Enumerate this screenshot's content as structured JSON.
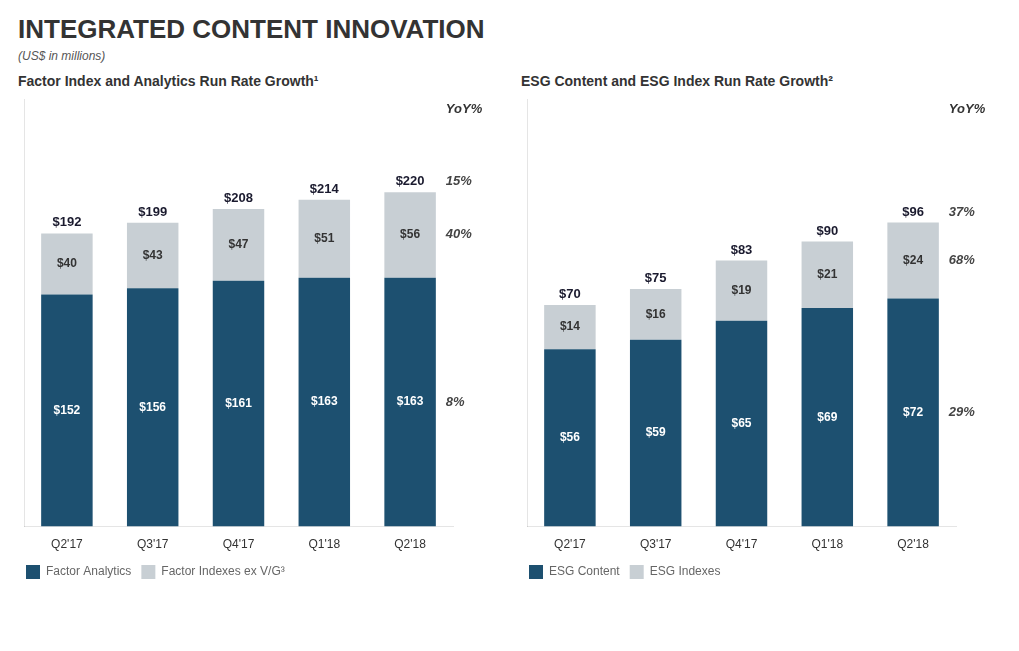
{
  "title": "INTEGRATED CONTENT INNOVATION",
  "subtitle": "(US$ in millions)",
  "chart_data": [
    {
      "type": "bar",
      "title": "Factor Index and Analytics Run Rate Growth¹",
      "categories": [
        "Q2'17",
        "Q3'17",
        "Q4'17",
        "Q1'18",
        "Q2'18"
      ],
      "series": [
        {
          "name": "Factor Analytics",
          "color": "#1d5070",
          "values": [
            152,
            156,
            161,
            163,
            163
          ],
          "value_labels": [
            "$152",
            "$156",
            "$161",
            "$163",
            "$163"
          ],
          "yoy_value": 8,
          "yoy_label": "8%"
        },
        {
          "name": "Factor Indexes ex V/G³",
          "color": "#c8cfd4",
          "values": [
            40,
            43,
            47,
            51,
            56
          ],
          "value_labels": [
            "$40",
            "$43",
            "$47",
            "$51",
            "$56"
          ],
          "yoy_value": 40,
          "yoy_label": "40%"
        }
      ],
      "totals": [
        192,
        199,
        208,
        214,
        220
      ],
      "total_labels": [
        "$192",
        "$199",
        "$208",
        "$214",
        "$220"
      ],
      "yoy_title": "YoY%",
      "total_yoy_value": 15,
      "total_yoy_label": "15%",
      "stacked": true,
      "data_labels": true,
      "ylim": [
        0,
        280
      ],
      "grid": false,
      "legend": "bottom",
      "tick_labels": "x"
    },
    {
      "type": "bar",
      "title": "ESG Content and ESG Index Run Rate Growth²",
      "categories": [
        "Q2'17",
        "Q3'17",
        "Q4'17",
        "Q1'18",
        "Q2'18"
      ],
      "series": [
        {
          "name": "ESG Content",
          "color": "#1d5070",
          "values": [
            56,
            59,
            65,
            69,
            72
          ],
          "value_labels": [
            "$56",
            "$59",
            "$65",
            "$69",
            "$72"
          ],
          "yoy_value": 29,
          "yoy_label": "29%"
        },
        {
          "name": "ESG Indexes",
          "color": "#c8cfd4",
          "values": [
            14,
            16,
            19,
            21,
            24
          ],
          "value_labels": [
            "$14",
            "$16",
            "$19",
            "$21",
            "$24"
          ],
          "yoy_value": 68,
          "yoy_label": "68%"
        }
      ],
      "totals": [
        70,
        75,
        83,
        90,
        96
      ],
      "total_labels": [
        "$70",
        "$75",
        "$83",
        "$90",
        "$96"
      ],
      "yoy_title": "YoY%",
      "total_yoy_value": 37,
      "total_yoy_label": "37%",
      "stacked": true,
      "data_labels": true,
      "ylim": [
        0,
        135
      ],
      "grid": false,
      "legend": "bottom",
      "tick_labels": "x"
    }
  ]
}
